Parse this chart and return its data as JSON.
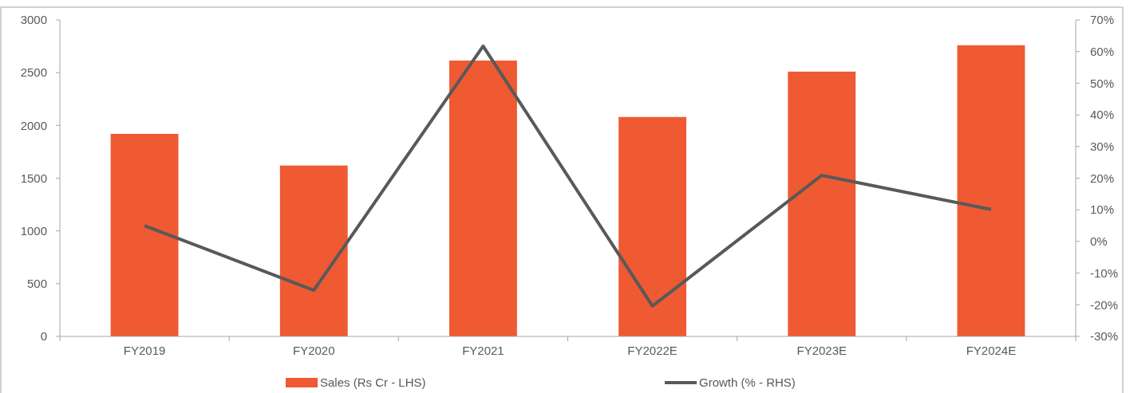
{
  "chart_data": {
    "type": "bar",
    "categories": [
      "FY2019",
      "FY2020",
      "FY2021",
      "FY2022E",
      "FY2023E",
      "FY2024E"
    ],
    "series": [
      {
        "name": "Sales (Rs Cr - LHS)",
        "color": "#ef5a33",
        "values": [
          1920,
          1620,
          2615,
          2080,
          2510,
          2760
        ]
      },
      {
        "name": "Growth (% - RHS)",
        "type": "line",
        "axis": "y2",
        "color": "#595959",
        "values": [
          5,
          -15.4,
          61.7,
          -20.4,
          20.9,
          10.1
        ]
      }
    ],
    "ylim": [
      0,
      3000
    ],
    "yticks": [
      0,
      500,
      1000,
      1500,
      2000,
      2500,
      3000
    ],
    "y2lim": [
      -30,
      70
    ],
    "y2ticks": [
      {
        "value": -30,
        "label": "-30%"
      },
      {
        "value": -20,
        "label": "-20%"
      },
      {
        "value": -10,
        "label": "-10%"
      },
      {
        "value": 0,
        "label": "0%"
      },
      {
        "value": 10,
        "label": "10%"
      },
      {
        "value": 20,
        "label": "20%"
      },
      {
        "value": 30,
        "label": "30%"
      },
      {
        "value": 40,
        "label": "40%"
      },
      {
        "value": 50,
        "label": "50%"
      },
      {
        "value": 60,
        "label": "60%"
      },
      {
        "value": 70,
        "label": "70%"
      }
    ],
    "grid": false,
    "legend": "bottom",
    "marker": "none",
    "line_style": "solid"
  }
}
